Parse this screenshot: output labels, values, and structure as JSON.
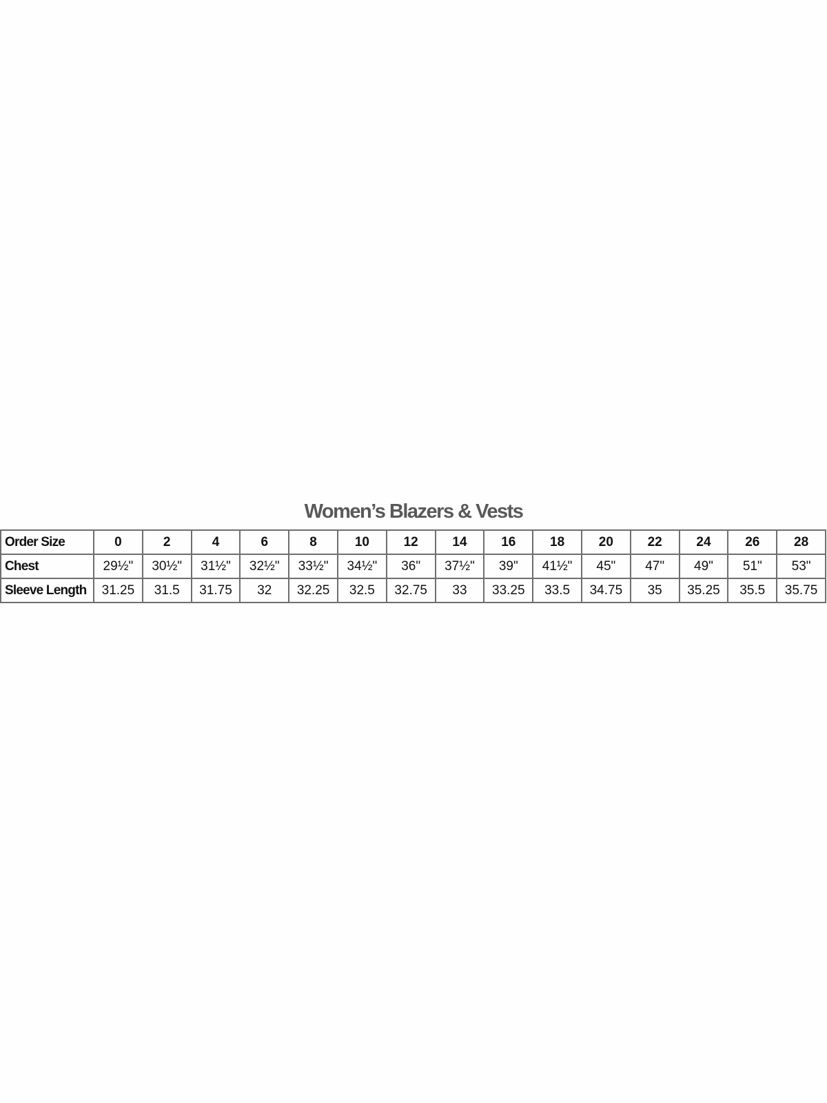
{
  "title": "Women’s Blazers & Vests",
  "table": {
    "rows": [
      {
        "label": "Order Size",
        "values": [
          "0",
          "2",
          "4",
          "6",
          "8",
          "10",
          "12",
          "14",
          "16",
          "18",
          "20",
          "22",
          "24",
          "26",
          "28"
        ]
      },
      {
        "label": "Chest",
        "values": [
          "29½\"",
          "30½\"",
          "31½\"",
          "32½\"",
          "33½\"",
          "34½\"",
          "36\"",
          "37½\"",
          "39\"",
          "41½\"",
          "45\"",
          "47\"",
          "49\"",
          "51\"",
          "53\""
        ]
      },
      {
        "label": "Sleeve Length",
        "values": [
          "31.25",
          "31.5",
          "31.75",
          "32",
          "32.25",
          "32.5",
          "32.75",
          "33",
          "33.25",
          "33.5",
          "34.75",
          "35",
          "35.25",
          "35.5",
          "35.75"
        ]
      }
    ]
  }
}
